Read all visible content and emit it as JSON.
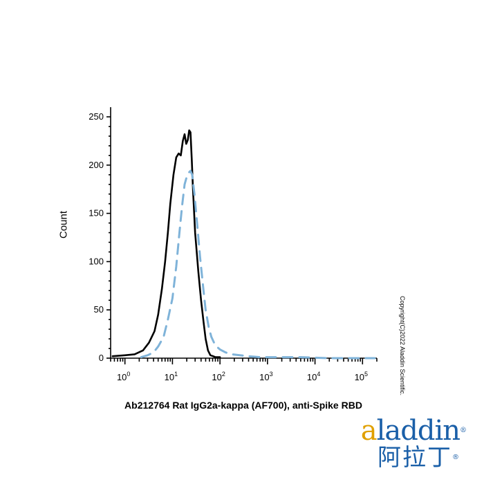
{
  "chart_data": {
    "type": "line",
    "title": "",
    "xlabel": "Ab212764 Rat IgG2a-kappa (AF700), anti-Spike RBD",
    "ylabel": "Count",
    "x_scale": "log",
    "xlim": [
      0.5,
      200000
    ],
    "ylim": [
      0,
      260
    ],
    "x_ticks": [
      {
        "base": "10",
        "exp": "0",
        "value": 1
      },
      {
        "base": "10",
        "exp": "1",
        "value": 10
      },
      {
        "base": "10",
        "exp": "2",
        "value": 100
      },
      {
        "base": "10",
        "exp": "3",
        "value": 1000
      },
      {
        "base": "10",
        "exp": "4",
        "value": 10000
      },
      {
        "base": "10",
        "exp": "5",
        "value": 100000
      }
    ],
    "y_ticks": [
      0,
      50,
      100,
      150,
      200,
      250
    ],
    "grid": false,
    "series": [
      {
        "style": "solid",
        "color": "#000000",
        "x": [
          0.55,
          1.0,
          1.6,
          2.4,
          3.2,
          4.2,
          5.0,
          6.0,
          7.0,
          8.0,
          9.0,
          10.5,
          12.0,
          13.5,
          15.0,
          16.5,
          18.0,
          19.5,
          21.0,
          22.5,
          24.0,
          25.5,
          27.0,
          30.0,
          35.0,
          40.0,
          45.0,
          50.0,
          56.0,
          63.0,
          72.0,
          80.0,
          90.0,
          100.0
        ],
        "y": [
          2,
          3,
          4,
          8,
          16,
          28,
          45,
          72,
          100,
          130,
          160,
          190,
          208,
          212,
          210,
          225,
          232,
          222,
          226,
          236,
          234,
          205,
          175,
          130,
          90,
          60,
          38,
          20,
          8,
          3,
          2,
          1,
          1,
          1
        ]
      },
      {
        "style": "dashed",
        "color": "#7fb3d9",
        "x": [
          2.2,
          3.0,
          4.0,
          5.0,
          6.5,
          8.0,
          10.0,
          12.0,
          14.0,
          16.0,
          18.0,
          20.0,
          22.0,
          24.0,
          26.0,
          29.0,
          33.0,
          38.0,
          44.0,
          50.0,
          58.0,
          66.0,
          75.0,
          85.0,
          100.0,
          130.0,
          180.0,
          260.0,
          400.0,
          700.0,
          1500.0,
          5000.0,
          20000.0,
          100000.0,
          180000.0
        ],
        "y": [
          1,
          3,
          6,
          12,
          22,
          40,
          62,
          95,
          130,
          158,
          180,
          188,
          192,
          194,
          190,
          170,
          140,
          105,
          75,
          50,
          32,
          22,
          16,
          12,
          9,
          6,
          4,
          3,
          2,
          1,
          1,
          1,
          0,
          0,
          0
        ]
      }
    ]
  },
  "watermark": {
    "copyright": "Copyright(C)2022 Aladdin Scientific.",
    "logo_text": "aladdin",
    "logo_cn": "阿拉丁"
  }
}
